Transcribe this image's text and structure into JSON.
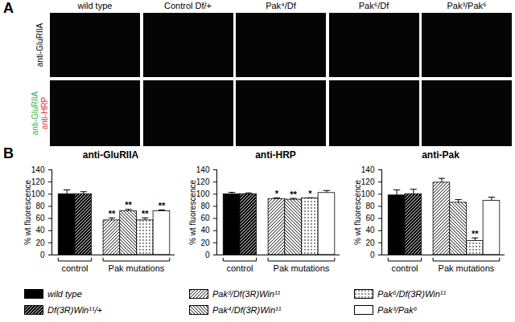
{
  "panels": {
    "A": {
      "label": "A",
      "columns": [
        "wild type",
        "Control Df/+",
        "Pak⁴/Df",
        "Pak⁶/Df",
        "Pak³/Pak⁶"
      ],
      "rows": [
        {
          "labels": [
            {
              "text": "anti-GluRIIA",
              "color": "#000000"
            }
          ]
        },
        {
          "labels": [
            {
              "text": "anti-GluRIIA",
              "color": "#2db34a"
            },
            {
              "text": "anti-HRP",
              "color": "#e0312a"
            }
          ]
        }
      ]
    },
    "B": {
      "label": "B"
    }
  },
  "key": [
    {
      "name": "wild type",
      "color": "#000000"
    },
    {
      "name": "Df(3R)Win¹¹/+",
      "color": "#000000"
    },
    {
      "name": "Pak³/Df(3R)Win¹¹",
      "color": "#ffffff"
    },
    {
      "name": "Pak⁴/Df(3R)Win¹¹",
      "color": "#ffffff"
    },
    {
      "name": "Pak⁶/Df(3R)Win¹¹",
      "color": "#ffffff"
    },
    {
      "name": "Pak³/Pak⁶",
      "color": "#ffffff"
    }
  ],
  "chart_data": [
    {
      "type": "bar",
      "title": "anti-GluRIIA",
      "ylabel": "% wt fluorescence",
      "ylim": [
        0,
        140
      ],
      "yticks": [
        0,
        20,
        40,
        60,
        80,
        100,
        120,
        140
      ],
      "tick_labels": "y",
      "values": [
        100,
        100,
        57,
        72,
        57,
        72
      ],
      "errors": [
        7,
        4,
        4,
        3,
        4,
        2
      ],
      "annotations": [
        null,
        null,
        "**",
        "**",
        "**",
        "**"
      ],
      "groups": [
        {
          "label": "control",
          "size": 2
        },
        {
          "label": "Pak mutations",
          "size": 4
        }
      ]
    },
    {
      "type": "bar",
      "title": "anti-HRP",
      "ylabel": "% wt fluorescence",
      "ylim": [
        0,
        140
      ],
      "yticks": [
        0,
        20,
        40,
        60,
        80,
        100,
        120,
        140
      ],
      "tick_labels": "y",
      "values": [
        100,
        100,
        92,
        91,
        93,
        102
      ],
      "errors": [
        3,
        2,
        2,
        2,
        1,
        4
      ],
      "annotations": [
        null,
        null,
        "*",
        "**",
        "*",
        null
      ],
      "groups": [
        {
          "label": "control",
          "size": 2
        },
        {
          "label": "Pak mutations",
          "size": 4
        }
      ]
    },
    {
      "type": "bar",
      "title": "anti-Pak",
      "ylabel": "% wt fluorescence",
      "ylim": [
        0,
        140
      ],
      "yticks": [
        0,
        20,
        40,
        60,
        80,
        100,
        120,
        140
      ],
      "tick_labels": "y",
      "values": [
        98,
        100,
        119,
        86,
        23,
        89
      ],
      "errors": [
        9,
        8,
        7,
        5,
        5,
        6
      ],
      "annotations": [
        null,
        null,
        null,
        null,
        "**",
        null
      ],
      "groups": [
        {
          "label": "control",
          "size": 2
        },
        {
          "label": "Pak mutations",
          "size": 4
        }
      ]
    }
  ]
}
